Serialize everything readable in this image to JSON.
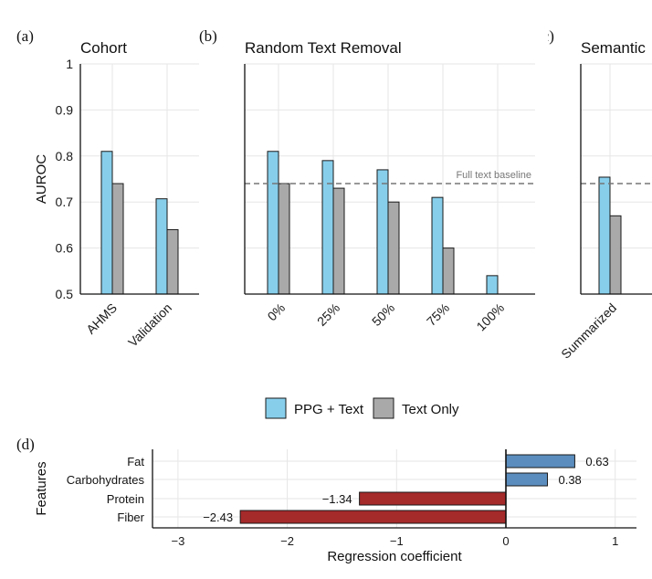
{
  "legend": {
    "items": [
      {
        "label": "PPG + Text",
        "color": "#87CEEB"
      },
      {
        "label": "Text Only",
        "color": "#A9A9A9"
      }
    ]
  },
  "colors": {
    "ppg_text": "#87CEEB",
    "text_only": "#A9A9A9",
    "positive": "#5B8DBE",
    "negative": "#A52A2A",
    "baseline": "#777777"
  },
  "chart_data": [
    {
      "panel": "(a)",
      "type": "bar",
      "title": "Cohort",
      "ylabel": "AUROC",
      "ylim": [
        0.5,
        1
      ],
      "yticks": [
        "0.5",
        "0.6",
        "0.7",
        "0.8",
        "0.9",
        "1"
      ],
      "categories": [
        "AHMS",
        "Validation"
      ],
      "series": [
        {
          "name": "PPG + Text",
          "values": [
            0.81,
            0.707
          ]
        },
        {
          "name": "Text Only",
          "values": [
            0.74,
            0.64
          ]
        }
      ]
    },
    {
      "panel": "(b)",
      "type": "bar",
      "title": "Random Text Removal",
      "ylim": [
        0.5,
        1
      ],
      "categories": [
        "0%",
        "25%",
        "50%",
        "75%",
        "100%"
      ],
      "series": [
        {
          "name": "PPG + Text",
          "values": [
            0.81,
            0.79,
            0.77,
            0.71,
            0.54
          ]
        },
        {
          "name": "Text Only",
          "values": [
            0.74,
            0.73,
            0.7,
            0.6,
            null
          ]
        }
      ],
      "reference_line": {
        "value": 0.74,
        "label": "Full text baseline"
      }
    },
    {
      "panel": "(c)",
      "type": "bar",
      "title": "Semantic",
      "ylim": [
        0.5,
        1
      ],
      "categories": [
        "Summarized"
      ],
      "series": [
        {
          "name": "PPG + Text",
          "values": [
            0.754
          ]
        },
        {
          "name": "Text Only",
          "values": [
            0.67
          ]
        }
      ],
      "reference_line": {
        "value": 0.74
      }
    },
    {
      "panel": "(d)",
      "type": "bar",
      "orientation": "horizontal",
      "xlabel": "Regression coefficient",
      "ylabel": "Features",
      "xlim": [
        -3.2,
        1.2
      ],
      "xticks": [
        "−3",
        "−2",
        "−1",
        "0",
        "1"
      ],
      "categories": [
        "Fat",
        "Carbohydrates",
        "Protein",
        "Fiber"
      ],
      "values": [
        0.63,
        0.38,
        -1.34,
        -2.43
      ],
      "value_labels": [
        "0.63",
        "0.38",
        "−1.34",
        "−2.43"
      ]
    }
  ]
}
